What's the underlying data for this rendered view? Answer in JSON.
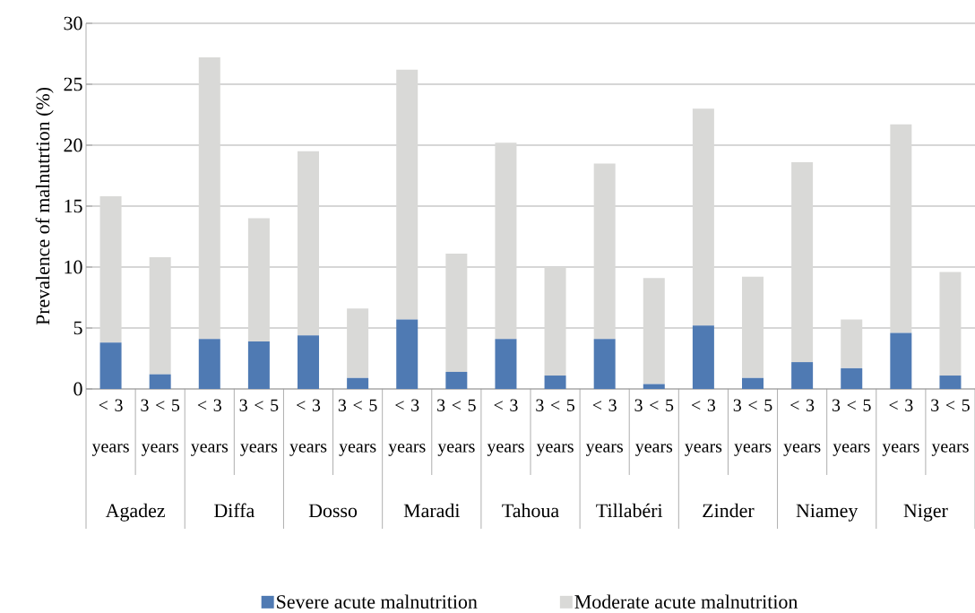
{
  "chart_data": {
    "type": "bar",
    "stacked": true,
    "ylabel": "Prevalence of malnutrtion (%)",
    "categories": [
      "< 3 years",
      "3 < 5 years",
      "< 3 years",
      "3 < 5 years",
      "< 3 years",
      "3 < 5 years",
      "< 3 years",
      "3 < 5 years",
      "< 3 years",
      "3 < 5 years",
      "< 3 years",
      "3 < 5 years",
      "< 3 years",
      "3 < 5 years",
      "< 3 years",
      "3 < 5 years",
      "< 3 years",
      "3 < 5 years"
    ],
    "annotations": [
      "Agadez",
      "Diffa",
      "Dosso",
      "Maradi",
      "Tahoua",
      "Tillabéri",
      "Zinder",
      "Niamey",
      "Niger"
    ],
    "series": [
      {
        "name": "Severe acute malnutrition",
        "color": "#4f7ab3",
        "values": [
          3.8,
          1.2,
          4.1,
          3.9,
          4.4,
          0.9,
          5.7,
          1.4,
          4.1,
          1.1,
          4.1,
          0.4,
          5.2,
          0.9,
          2.2,
          1.7,
          4.6,
          1.1
        ]
      },
      {
        "name": "Moderate acute malnutrition",
        "color": "#d9d9d7",
        "values": [
          12.0,
          9.6,
          23.1,
          10.1,
          15.1,
          5.7,
          20.5,
          9.7,
          16.1,
          8.9,
          14.4,
          8.7,
          17.8,
          8.3,
          16.4,
          4.0,
          17.1,
          8.5
        ]
      }
    ],
    "ylim": [
      0,
      30
    ],
    "yticks": [
      0,
      5,
      10,
      15,
      20,
      25,
      30
    ],
    "grid": "y",
    "legend": "bottom"
  }
}
